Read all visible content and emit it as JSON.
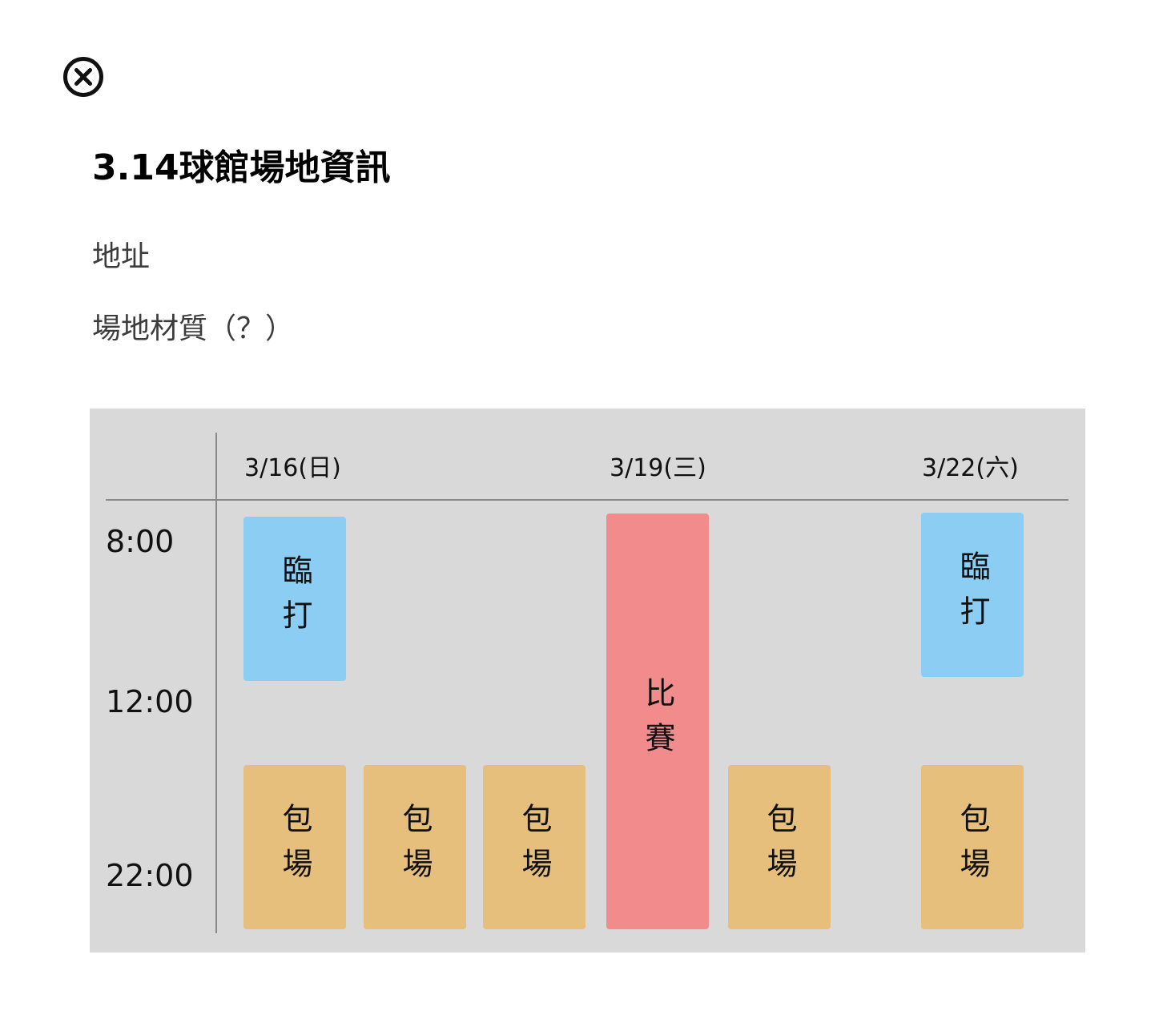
{
  "close_icon": "close-circle-icon",
  "title": "3.14球館場地資訊",
  "info": {
    "address": "地址",
    "material": "場地材質（？）"
  },
  "colors": {
    "schedule_bg": "#d9d9d9",
    "practice": "#8ccdf4",
    "booking": "#e5bf7b",
    "match": "#f28b8b"
  },
  "schedule": {
    "days": [
      "3/16(日)",
      "3/19(三)",
      "3/22(六)"
    ],
    "times": [
      "8:00",
      "12:00",
      "22:00"
    ],
    "blocks": {
      "practice": "臨打",
      "booking": "包場",
      "match": "比賽"
    }
  }
}
